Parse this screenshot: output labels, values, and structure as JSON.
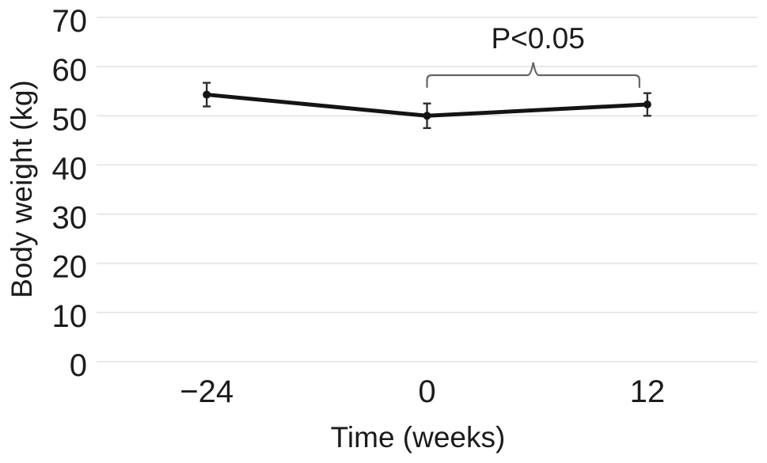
{
  "figure": {
    "background_color": "#ffffff",
    "text_color": "#1c1c1c"
  },
  "chart_data": {
    "type": "line",
    "title": "",
    "xlabel": "Time (weeks)",
    "ylabel": "Body weight (kg)",
    "categories": [
      "−24",
      "0",
      "12"
    ],
    "series": [
      {
        "name": "Body weight",
        "values": [
          54.3,
          50.0,
          52.3
        ],
        "errors": [
          2.4,
          2.5,
          2.3
        ],
        "color": "#141414",
        "marker": "circle"
      }
    ],
    "ylim": [
      0,
      70
    ],
    "yticks": [
      0,
      10,
      20,
      30,
      40,
      50,
      60,
      70
    ],
    "grid": "horizontal-only",
    "gridline_color": "#e8e8e8",
    "error_bar_color": "#2e2e2e",
    "legend": "none",
    "annotation": {
      "text": "P<0.05",
      "type": "bracket",
      "from_category": "0",
      "to_category": "12",
      "bracket_color": "#646464"
    }
  }
}
